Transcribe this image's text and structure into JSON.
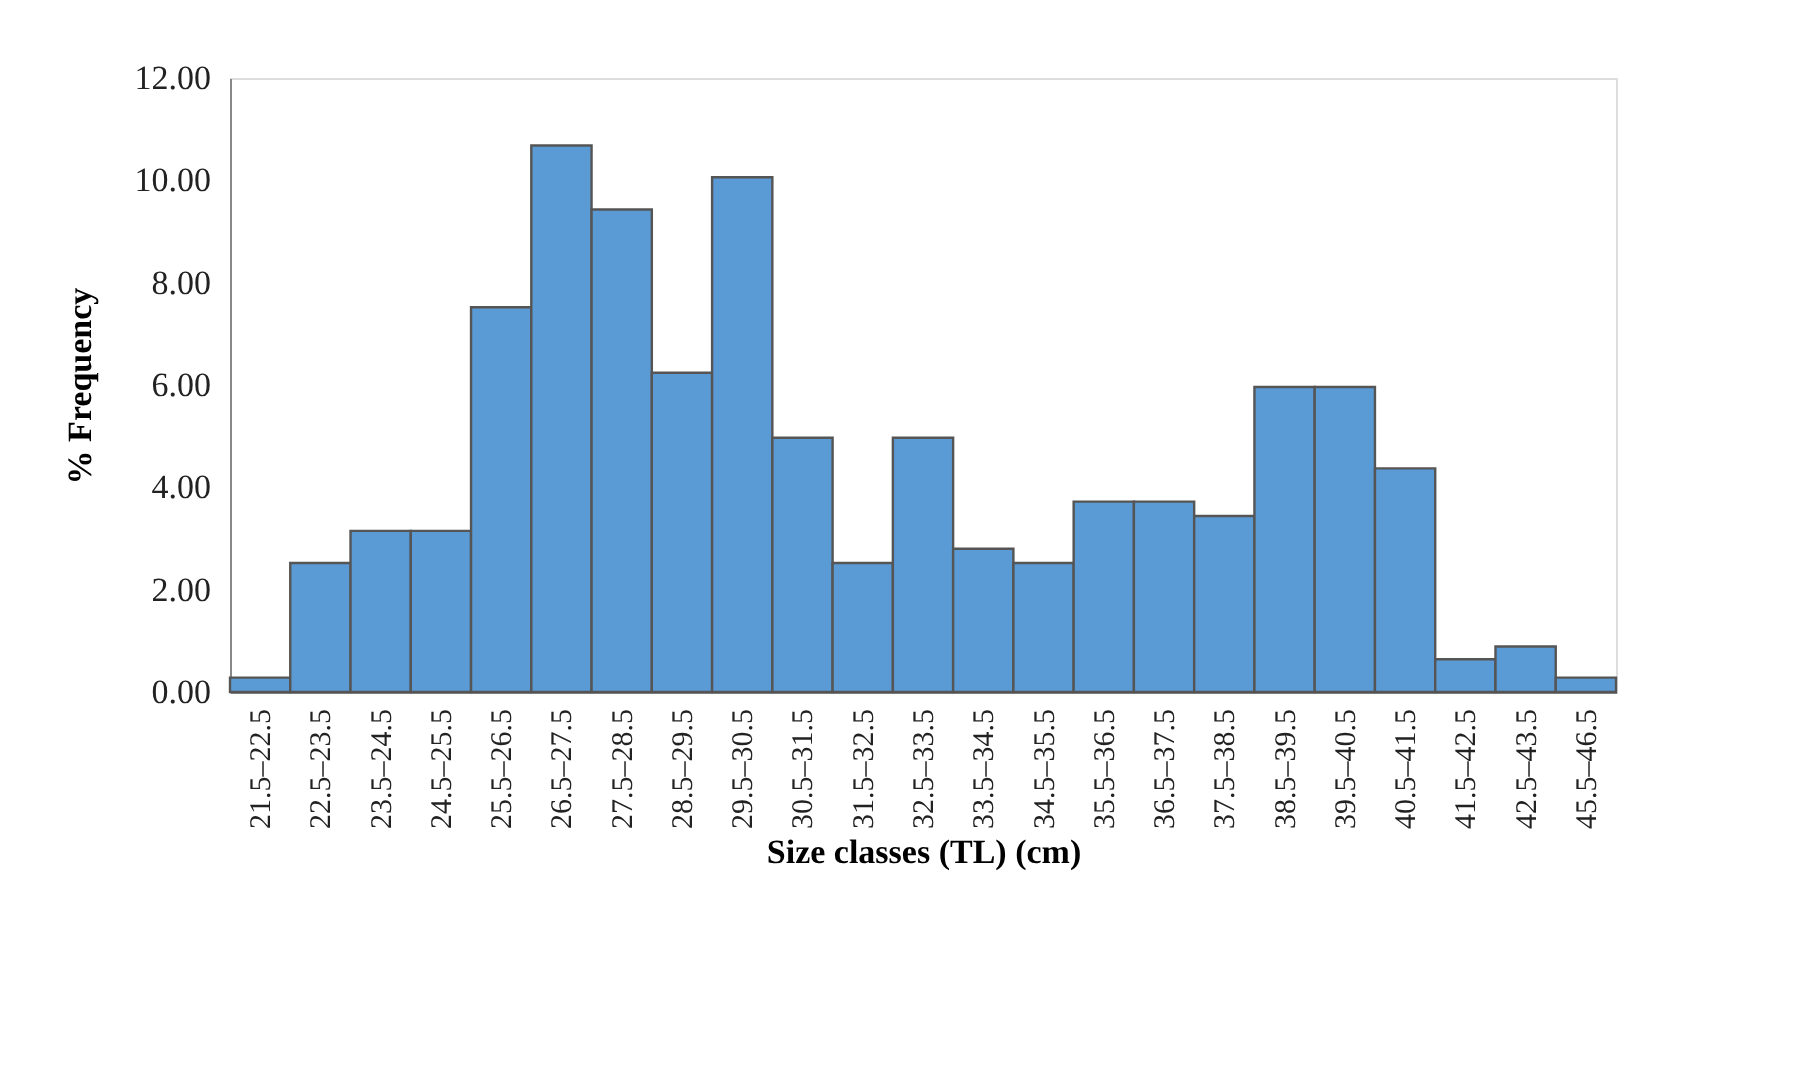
{
  "chart_data": {
    "type": "bar",
    "xlabel": "Size classes (TL) (cm)",
    "ylabel": "% Frequency",
    "categories": [
      "21.5–22.5",
      "22.5–23.5",
      "23.5–24.5",
      "24.5–25.5",
      "25.5–26.5",
      "26.5–27.5",
      "27.5–28.5",
      "28.5–29.5",
      "29.5–30.5",
      "30.5–31.5",
      "31.5–32.5",
      "32.5–33.5",
      "33.5–34.5",
      "34.5–35.5",
      "35.5–36.5",
      "36.5–37.5",
      "37.5–38.5",
      "38.5–39.5",
      "39.5–40.5",
      "40.5–41.5",
      "41.5–42.5",
      "42.5–43.5",
      "45.5–46.5"
    ],
    "values": [
      0.28,
      2.52,
      3.15,
      3.15,
      7.52,
      10.68,
      9.43,
      6.24,
      10.06,
      4.97,
      2.52,
      4.97,
      2.8,
      2.52,
      3.72,
      3.72,
      3.44,
      5.96,
      5.96,
      4.37,
      0.64,
      0.89,
      0.28
    ],
    "color": "#5b9bd5",
    "ylim": [
      0,
      12
    ],
    "yticks": [
      {
        "value": 0,
        "label": "0.00"
      },
      {
        "value": 2,
        "label": "2.00"
      },
      {
        "value": 4,
        "label": "4.00"
      },
      {
        "value": 6,
        "label": "6.00"
      },
      {
        "value": 8,
        "label": "8.00"
      },
      {
        "value": 10,
        "label": "10.00"
      },
      {
        "value": 12,
        "label": "12.00"
      }
    ],
    "grid": false
  }
}
